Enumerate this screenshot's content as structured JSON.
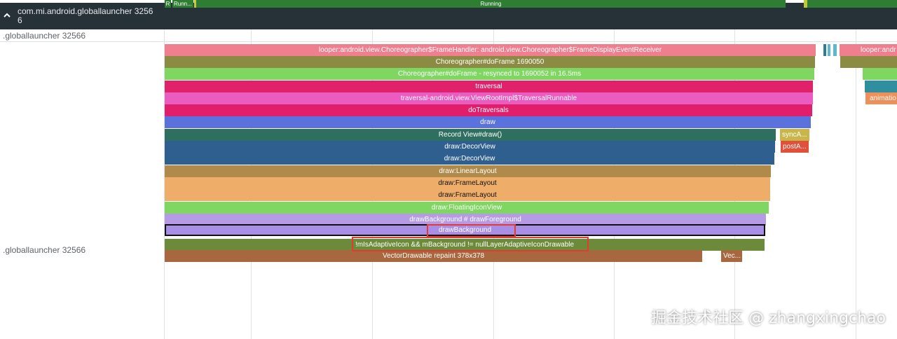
{
  "track_header": {
    "collapse_icon": "chevron-up-icon",
    "title": "com.mi.android.globallauncher 32566"
  },
  "process_label_top": ".globallauncher 32566",
  "process_label_main": ".globallauncher 32566",
  "thread_states": {
    "r": "R",
    "running_short": "Runn...",
    "running": "Running"
  },
  "slices": {
    "looper": "looper:android.view.Choreographer$FrameHandler: android.view.Choreographer$FrameDisplayEventReceiver",
    "looper_right": "looper:andr",
    "do_frame": "Choreographer#doFrame 1690050",
    "do_frame_resynced": "Choreographer#doFrame - resynced to 1690052 in 16.5ms",
    "traversal": "traversal",
    "traversal_runnable": "traversal-android.view.ViewRootImpl$TraversalRunnable",
    "do_traversals": "doTraversals",
    "draw": "draw",
    "record_view_draw": "Record View#draw()",
    "sync_a": "syncA...",
    "decor_view_1": "draw:DecorView",
    "post_a": "postA...",
    "decor_view_2": "draw:DecorView",
    "linear_layout": "draw:LinearLayout",
    "frame_layout_1": "draw:FrameLayout",
    "frame_layout_2": "draw:FrameLayout",
    "floating_icon_view": "draw:FloatingIconView",
    "draw_background_foreground": "drawBackground # drawForeground",
    "draw_background": "drawBackground",
    "is_adaptive_icon": "!mIsAdaptiveIcon && mBackground != nullLayerAdaptiveIconDrawable",
    "vector_drawable": "VectorDrawable repaint 378x378",
    "vec": "Vec...",
    "animation": "animatio"
  },
  "colors": {
    "header_bg": "#263238",
    "looper": "#ef7f8f",
    "do_frame": "#8b8b44",
    "resynced": "#7fd661",
    "traversal": "#e0226a",
    "traversal_runnable": "#ea5cc0",
    "draw": "#5b71de",
    "record_view": "#2f6f5f",
    "decor_view": "#2f5f8f",
    "linear_layout": "#b08a4a",
    "frame_layout": "#efad6a",
    "floating_icon": "#7fd661",
    "bg_foreground": "#b59ae5",
    "draw_background": "#a98ee6",
    "is_adaptive": "#6b8a3a",
    "vector_drawable": "#a8673e",
    "highlight": "#e53935",
    "running": "#2e7d32"
  },
  "watermark": "掘金技术社区 @ zhangxingchao"
}
